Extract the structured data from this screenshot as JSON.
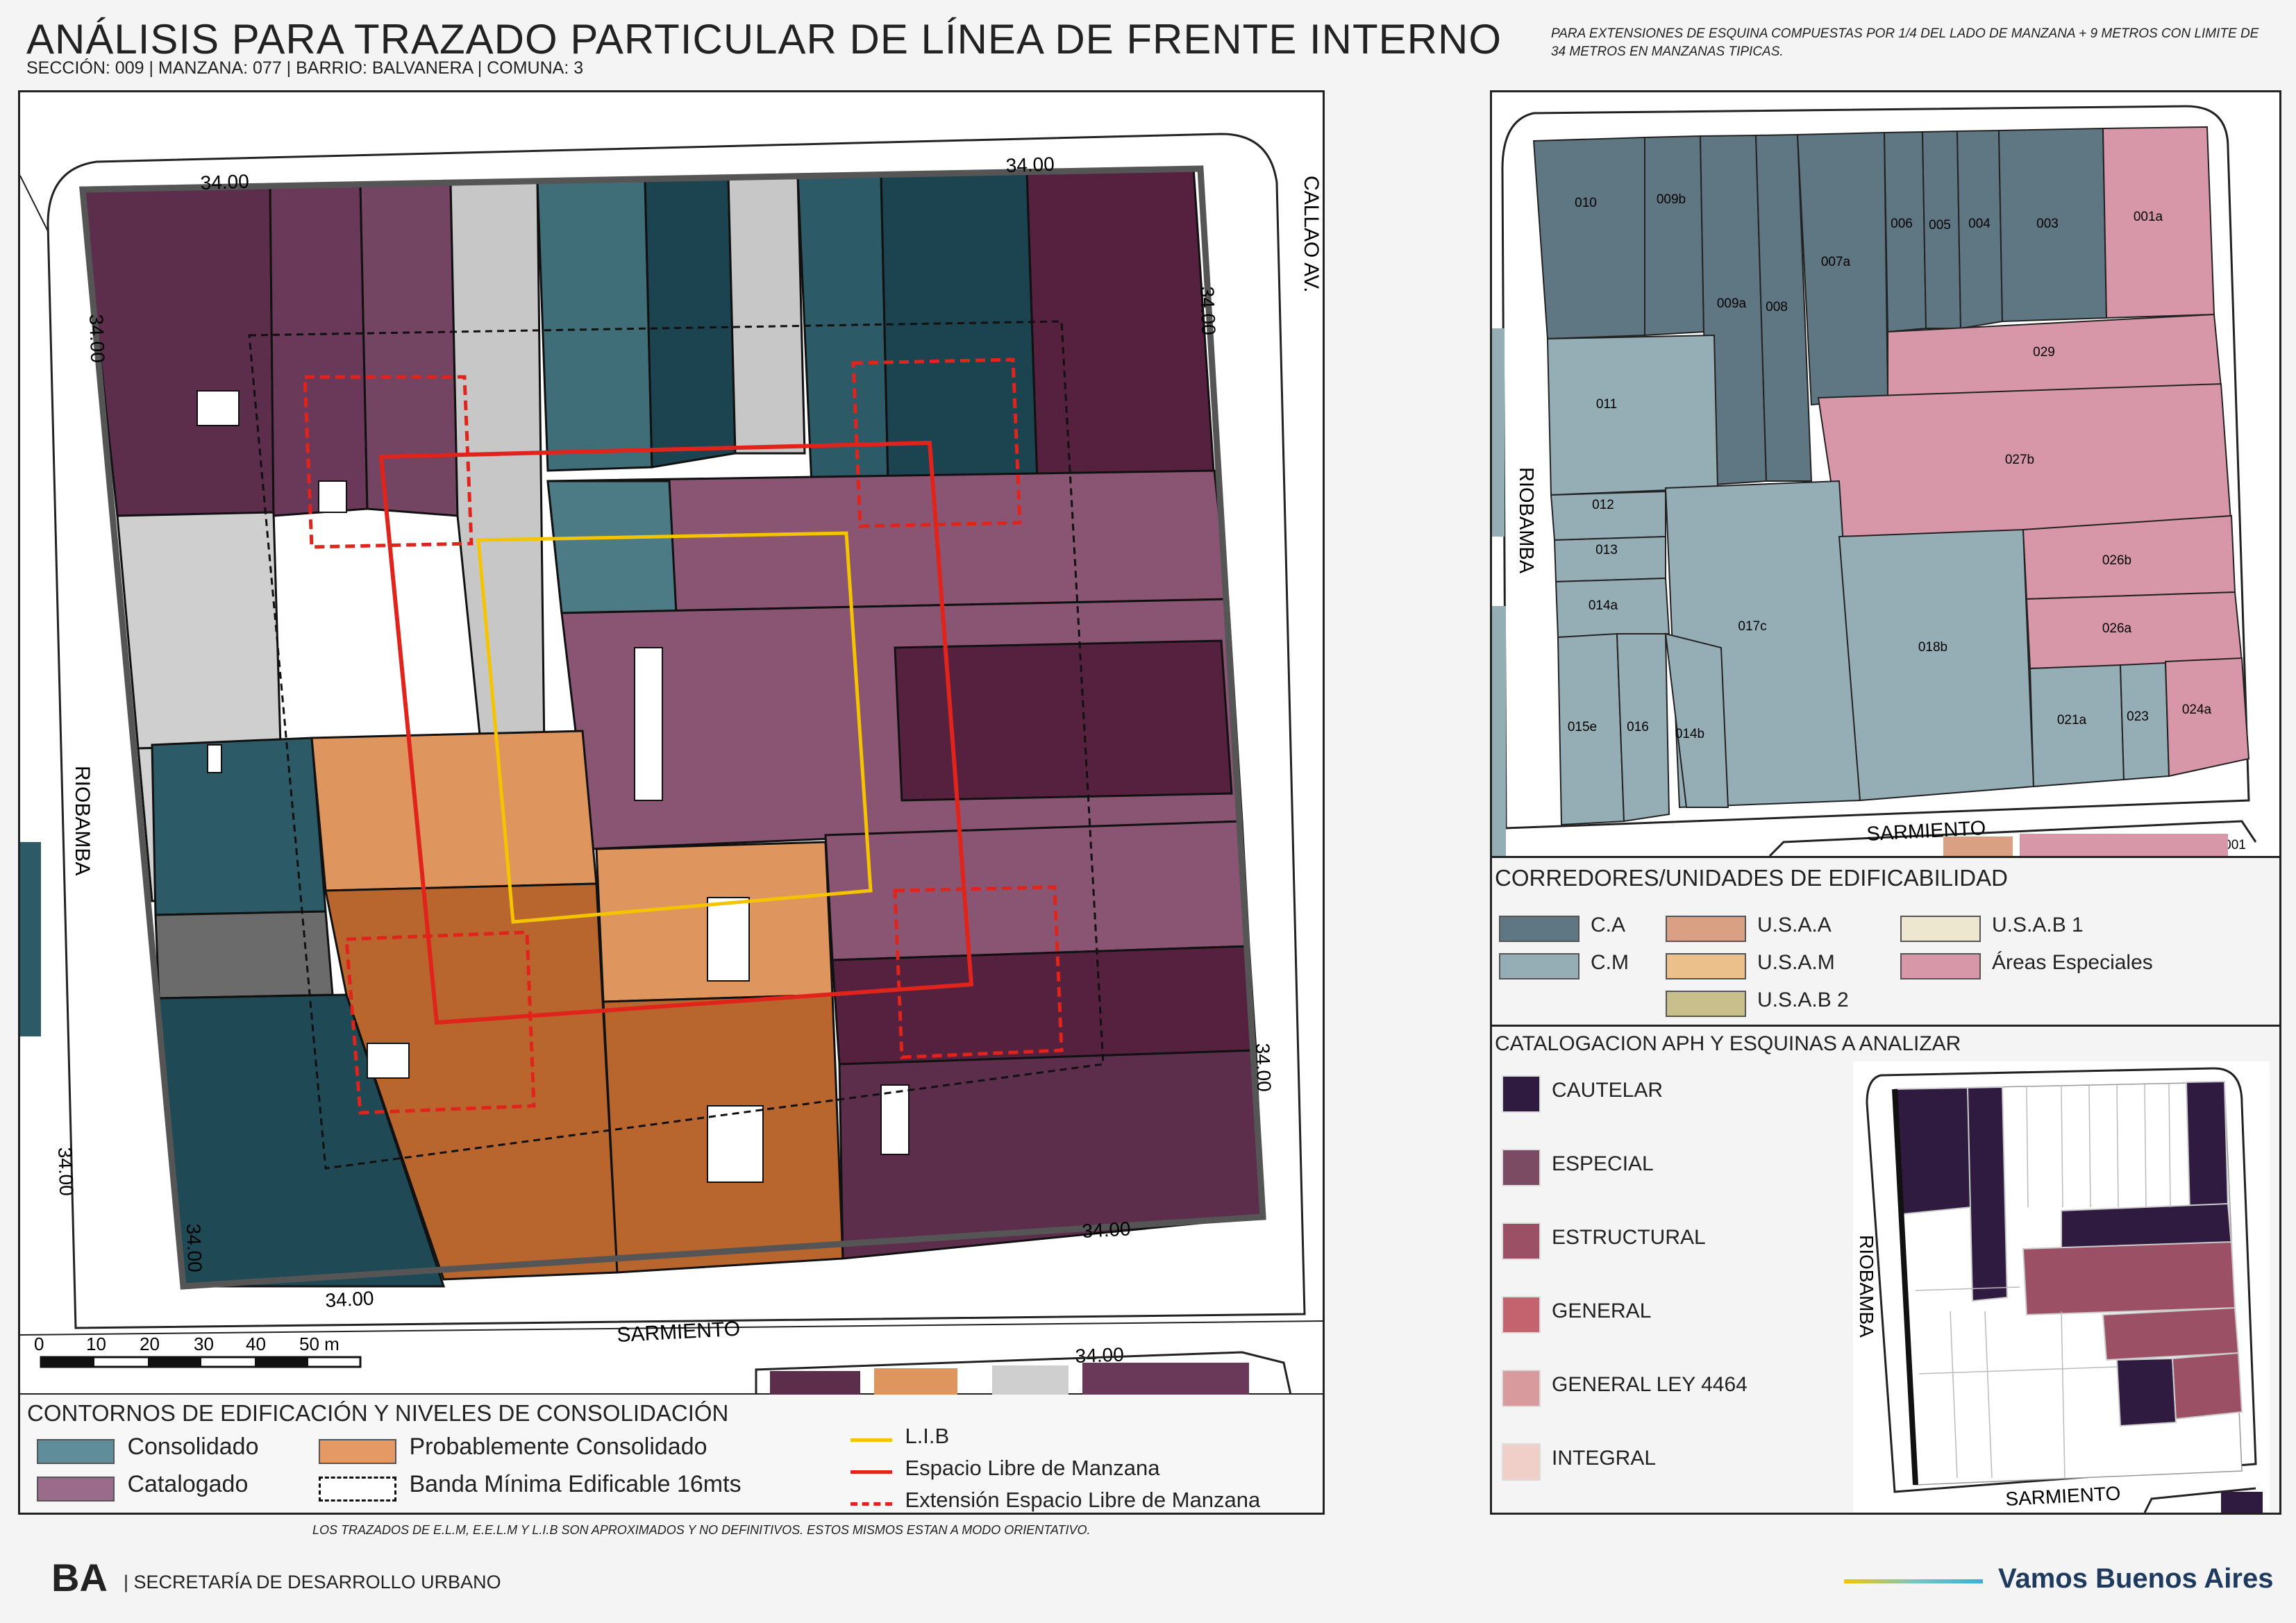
{
  "header": {
    "title": "ANÁLISIS PARA TRAZADO PARTICULAR DE LÍNEA DE FRENTE INTERNO",
    "subtitle": "SECCIÓN: 009 |  MANZANA: 077 | BARRIO: BALVANERA | COMUNA: 3",
    "note": "PARA EXTENSIONES DE ESQUINA COMPUESTAS POR 1/4 DEL LADO DE MANZANA + 9 METROS CON LIMITE DE 34 METROS EN MANZANAS TIPICAS."
  },
  "main_map": {
    "streets": [
      "CALLAO AV.",
      "RIOBAMBA",
      "SARMIENTO"
    ],
    "dimension_labels": [
      "34.00",
      "34.00",
      "34.00",
      "34.00",
      "34.00",
      "34.00",
      "34.00",
      "34.00",
      "34.00",
      "34.00"
    ],
    "scale_labels": [
      "0",
      "10",
      "20",
      "30",
      "40",
      "50 m"
    ]
  },
  "main_legend": {
    "title": "CONTORNOS DE EDIFICACIÓN Y NIVELES DE CONSOLIDACIÓN",
    "items": [
      {
        "label": "Consolidado",
        "color": "#5f8d99"
      },
      {
        "label": "Probablemente Consolidado",
        "color": "#e59a66"
      },
      {
        "label": "Catalogado",
        "color": "#9a6b8a"
      },
      {
        "label": "Banda Mínima Edificable 16mts",
        "color": "none"
      }
    ],
    "lines": [
      {
        "label": "L.I.B",
        "color": "#f5c400",
        "style": "solid"
      },
      {
        "label": "Espacio Libre de Manzana",
        "color": "#e0241b",
        "style": "solid"
      },
      {
        "label": "Extensión Espacio Libre de Manzana",
        "color": "#e0241b",
        "style": "dashed"
      }
    ]
  },
  "parcel_map": {
    "streets": [
      "RIOBAMBA",
      "SARMIENTO"
    ],
    "parcels": [
      "010",
      "009b",
      "009a",
      "008",
      "007a",
      "006",
      "005",
      "004",
      "003",
      "001a",
      "029",
      "027b",
      "011",
      "012",
      "013",
      "014a",
      "017c",
      "018b",
      "026b",
      "026a",
      "015e",
      "016",
      "014b",
      "021a",
      "023",
      "024a",
      "001"
    ]
  },
  "corredores_legend": {
    "title": "CORREDORES/UNIDADES DE EDIFICABILIDAD",
    "items": [
      {
        "label": "C.A",
        "color": "#5f7783"
      },
      {
        "label": "U.S.A.A",
        "color": "#d9a084"
      },
      {
        "label": "U.S.A.B 1",
        "color": "#ede7cf"
      },
      {
        "label": "C.M",
        "color": "#95aeb6"
      },
      {
        "label": "U.S.A.M",
        "color": "#ebc08b"
      },
      {
        "label": "Áreas Especiales",
        "color": "#d797a8"
      },
      {
        "label": "U.S.A.B 2",
        "color": "#c9bf8c"
      }
    ]
  },
  "catalogacion_legend": {
    "title": "CATALOGACION APH Y ESQUINAS A ANALIZAR",
    "items": [
      {
        "label": "CAUTELAR",
        "color": "#2e1b3f"
      },
      {
        "label": "ESPECIAL",
        "color": "#7b4a63"
      },
      {
        "label": "ESTRUCTURAL",
        "color": "#9b5065"
      },
      {
        "label": "GENERAL",
        "color": "#c4636e"
      },
      {
        "label": "GENERAL LEY 4464",
        "color": "#d99a9e"
      },
      {
        "label": "INTEGRAL",
        "color": "#efcfc7"
      }
    ],
    "mini_map_streets": [
      "RIOBAMBA",
      "SARMIENTO"
    ]
  },
  "footer": {
    "disclaimer": "LOS TRAZADOS DE E.L.M, E.E.L.M Y L.I.B SON APROXIMADOS Y NO DEFINITIVOS. ESTOS MISMOS ESTAN A MODO ORIENTATIVO.",
    "logo": "BA",
    "org": "| SECRETARÍA DE DESARROLLO URBANO",
    "brand": "Vamos Buenos Aires"
  }
}
